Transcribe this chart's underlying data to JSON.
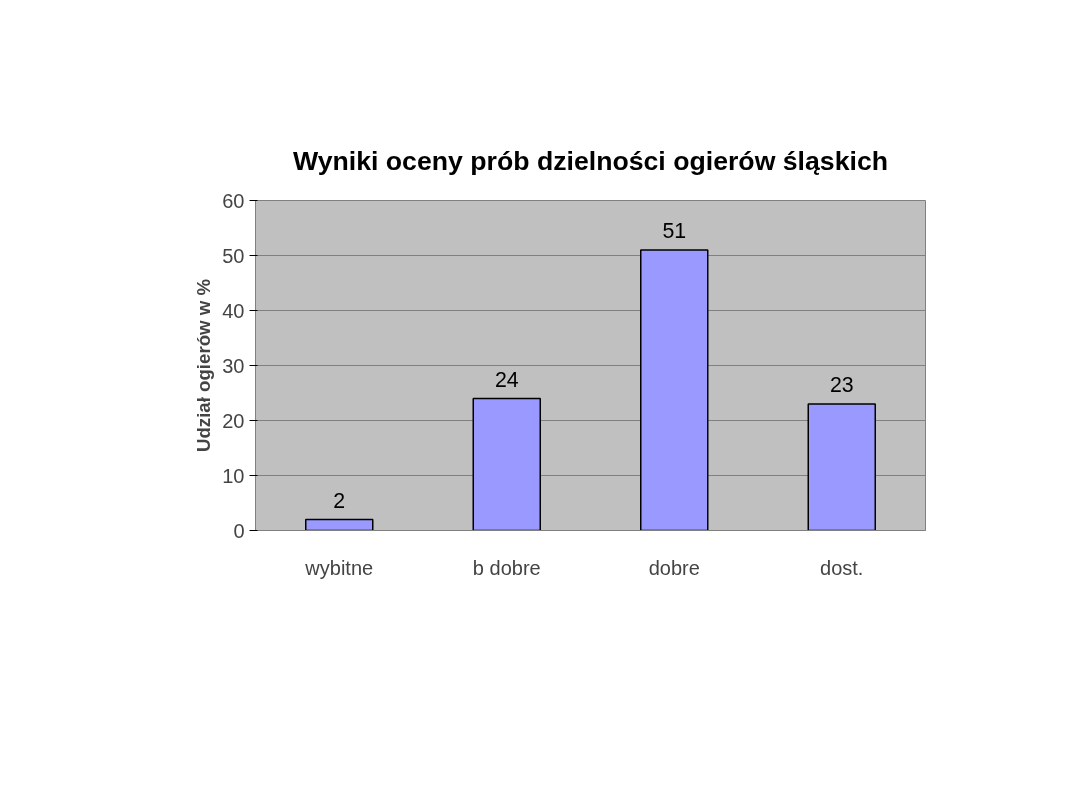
{
  "chart_data": {
    "type": "bar",
    "title": "Wyniki oceny prób dzielności ogierów śląskich",
    "ylabel": "Udział ogierów w %",
    "categories": [
      "wybitne",
      "b dobre",
      "dobre",
      "dost."
    ],
    "values": [
      2,
      24,
      51,
      23
    ],
    "color": "#9999ff",
    "ylim": [
      0,
      60
    ],
    "yticks": [
      0,
      10,
      20,
      30,
      40,
      50,
      60
    ],
    "grid": "y",
    "data_labels": true
  }
}
